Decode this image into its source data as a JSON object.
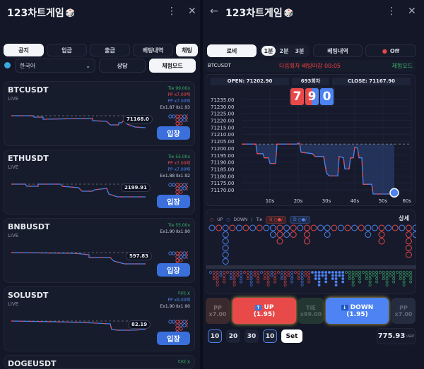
{
  "app_title": "123차트게임",
  "left": {
    "tabs": [
      {
        "label": "공지",
        "active": true
      },
      {
        "label": "입금"
      },
      {
        "label": "출금"
      },
      {
        "label": "베팅내역"
      },
      {
        "label": "채팅",
        "active": true
      }
    ],
    "language": "한국어",
    "consult": "상담",
    "demo_mode": "체험모드",
    "cards": [
      {
        "symbol": "BTCUSDT",
        "status": "LIVE",
        "tie": "Tie 99.00x",
        "pp_red": "PP x7.00배",
        "pp_blue": "PP x7.00배",
        "odds": "Ex1.87 Ⅱx1.93",
        "price": "71168.0",
        "enter": "입장"
      },
      {
        "symbol": "ETHUSDT",
        "status": "LIVE",
        "tie": "Tie 55.00x",
        "pp_red": "PP x7.00배",
        "pp_blue": "PP x7.00배",
        "odds": "Ex1.88 Ⅱx1.92",
        "price": "2199.91",
        "enter": "입장"
      },
      {
        "symbol": "BNBUSDT",
        "status": "LIVE",
        "tie": "Tie 55.00x",
        "pp_red": "",
        "pp_blue": "",
        "odds": "Ex1.90 Ⅱx1.90",
        "price": "597.83",
        "enter": "입장"
      },
      {
        "symbol": "SOLUSDT",
        "status": "LIVE",
        "tie": "타이 X",
        "pp_red": "",
        "pp_blue": "PP x9.00배",
        "odds": "Ex1.90 Ⅱx1.90",
        "price": "82.19",
        "enter": "입장"
      },
      {
        "symbol": "DOGEUSDT",
        "status": "",
        "tie": "타이 X",
        "pp_red": "",
        "pp_blue": "",
        "odds": "",
        "price": "",
        "enter": ""
      }
    ]
  },
  "right": {
    "tabs": {
      "lobby": "로비",
      "durations": [
        "1분",
        "2분",
        "3분"
      ],
      "active_duration": "1분",
      "history": "베팅내역",
      "sound": "Off"
    },
    "symbol": "BTCUSDT",
    "countdown": "다음회차 베팅마감 00:05",
    "mode": "체험모드",
    "open": "OPEN: 71202.90",
    "round": "693회차",
    "close": "CLOSE: 71167.90",
    "digits": [
      "7",
      "9",
      "0"
    ],
    "legend": {
      "up": "UP",
      "down": "DOWN",
      "tie": "Tie",
      "u_btn": "U",
      "d_btn": "D",
      "detail": "상세"
    },
    "bet": {
      "pp_left": "PP",
      "pp_left_odds": "x7.00",
      "up": "UP",
      "up_odds": "(1.95)",
      "tie": "TIE",
      "tie_odds": "x99.00",
      "down": "DOWN",
      "down_odds": "(1.95)",
      "pp_right": "PP",
      "pp_right_odds": "x7.00"
    },
    "chips": [
      "10",
      "20",
      "30",
      "10"
    ],
    "set": "Set",
    "balance": "775.93",
    "currency": "USDT",
    "bead_columns": [
      "D",
      "U",
      "DDDDDD",
      "U",
      "D",
      "U",
      "D",
      "U",
      "D",
      "DD",
      "UUU",
      "DD",
      "UU",
      "D",
      "UUU",
      "U",
      "D",
      "DD",
      "U",
      "D",
      "U",
      "D",
      "U",
      "DD",
      "D",
      "UUU",
      "D",
      "U",
      "D",
      "UUUUU",
      "DD",
      "UUU",
      "D"
    ]
  },
  "colors": {
    "up": "#e84a4a",
    "down": "#4d83f2",
    "tie": "#3bb56a",
    "bg": "#131727"
  },
  "chart_data": {
    "type": "line",
    "x_ticks": [
      "10s",
      "20s",
      "30s",
      "40s",
      "50s",
      "60s"
    ],
    "xlim": [
      0,
      60
    ],
    "ylim": [
      71167.5,
      71237.5
    ],
    "y_ticks": [
      71235,
      71230,
      71225,
      71220,
      71215,
      71210,
      71205,
      71200,
      71195,
      71190,
      71185,
      71180,
      71175,
      71170
    ],
    "open_line": 71202.9,
    "x": [
      0,
      5,
      5.5,
      7.5,
      8,
      9.5,
      10,
      12,
      12.5,
      19.5,
      20,
      20.5,
      21,
      25,
      26,
      29,
      30,
      31,
      34,
      34.5,
      36,
      36.5,
      38,
      38.5,
      39.5,
      40,
      41,
      41.5,
      42.5,
      43,
      46,
      46.5,
      53,
      54
    ],
    "y": [
      71202.9,
      71202.9,
      71196,
      71196,
      71193,
      71193,
      71189,
      71189,
      71202.9,
      71202.9,
      71203.5,
      71203.5,
      71197,
      71196,
      71194,
      71194,
      71182,
      71180,
      71180,
      71194,
      71193,
      71185,
      71185,
      71193,
      71193,
      71200.5,
      71200,
      71193,
      71193,
      71174,
      71174,
      71167,
      71167,
      71167.9
    ]
  }
}
